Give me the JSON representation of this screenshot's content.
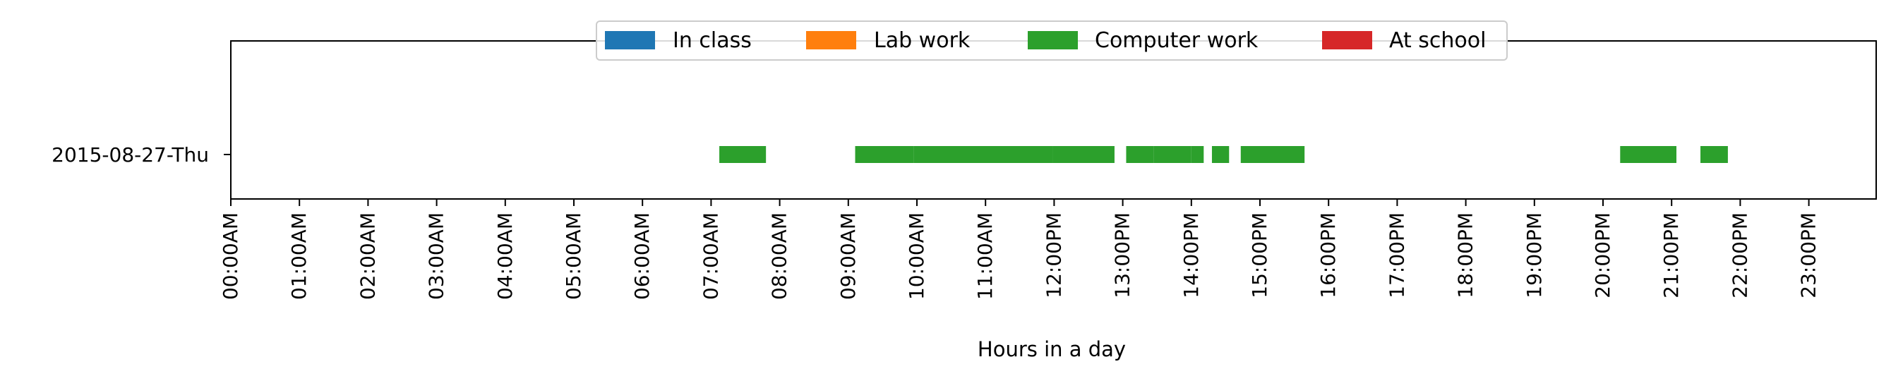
{
  "chart_data": {
    "type": "bar",
    "orientation": "horizontal-timeline",
    "categories": [
      "2015-08-27-Thu"
    ],
    "xlabel": "Hours in a day",
    "xlim": [
      0,
      24
    ],
    "x_ticks": [
      0,
      1,
      2,
      3,
      4,
      5,
      6,
      7,
      8,
      9,
      10,
      11,
      12,
      13,
      14,
      15,
      16,
      17,
      18,
      19,
      20,
      21,
      22,
      23
    ],
    "x_tick_labels": [
      "00:00AM",
      "01:00AM",
      "02:00AM",
      "03:00AM",
      "04:00AM",
      "05:00AM",
      "06:00AM",
      "07:00AM",
      "08:00AM",
      "09:00AM",
      "10:00AM",
      "11:00AM",
      "12:00PM",
      "13:00PM",
      "14:00PM",
      "15:00PM",
      "16:00PM",
      "17:00PM",
      "18:00PM",
      "19:00PM",
      "20:00PM",
      "21:00PM",
      "22:00PM",
      "23:00PM"
    ],
    "legend_position": "top-center",
    "series": [
      {
        "name": "In class",
        "color": "#1f77b4",
        "segments": []
      },
      {
        "name": "Lab work",
        "color": "#ff7f0e",
        "segments": []
      },
      {
        "name": "Computer work",
        "color": "#2ca02c",
        "segments": [
          {
            "start": 7.12,
            "end": 7.8
          },
          {
            "start": 9.1,
            "end": 9.95
          },
          {
            "start": 9.95,
            "end": 11.98
          },
          {
            "start": 11.98,
            "end": 12.88
          },
          {
            "start": 13.05,
            "end": 13.45
          },
          {
            "start": 13.45,
            "end": 14.0
          },
          {
            "start": 14.0,
            "end": 14.18
          },
          {
            "start": 14.3,
            "end": 14.55
          },
          {
            "start": 14.72,
            "end": 15.65
          },
          {
            "start": 20.25,
            "end": 21.07
          },
          {
            "start": 21.42,
            "end": 21.82
          }
        ]
      },
      {
        "name": "At school",
        "color": "#d62728",
        "segments": []
      }
    ]
  }
}
